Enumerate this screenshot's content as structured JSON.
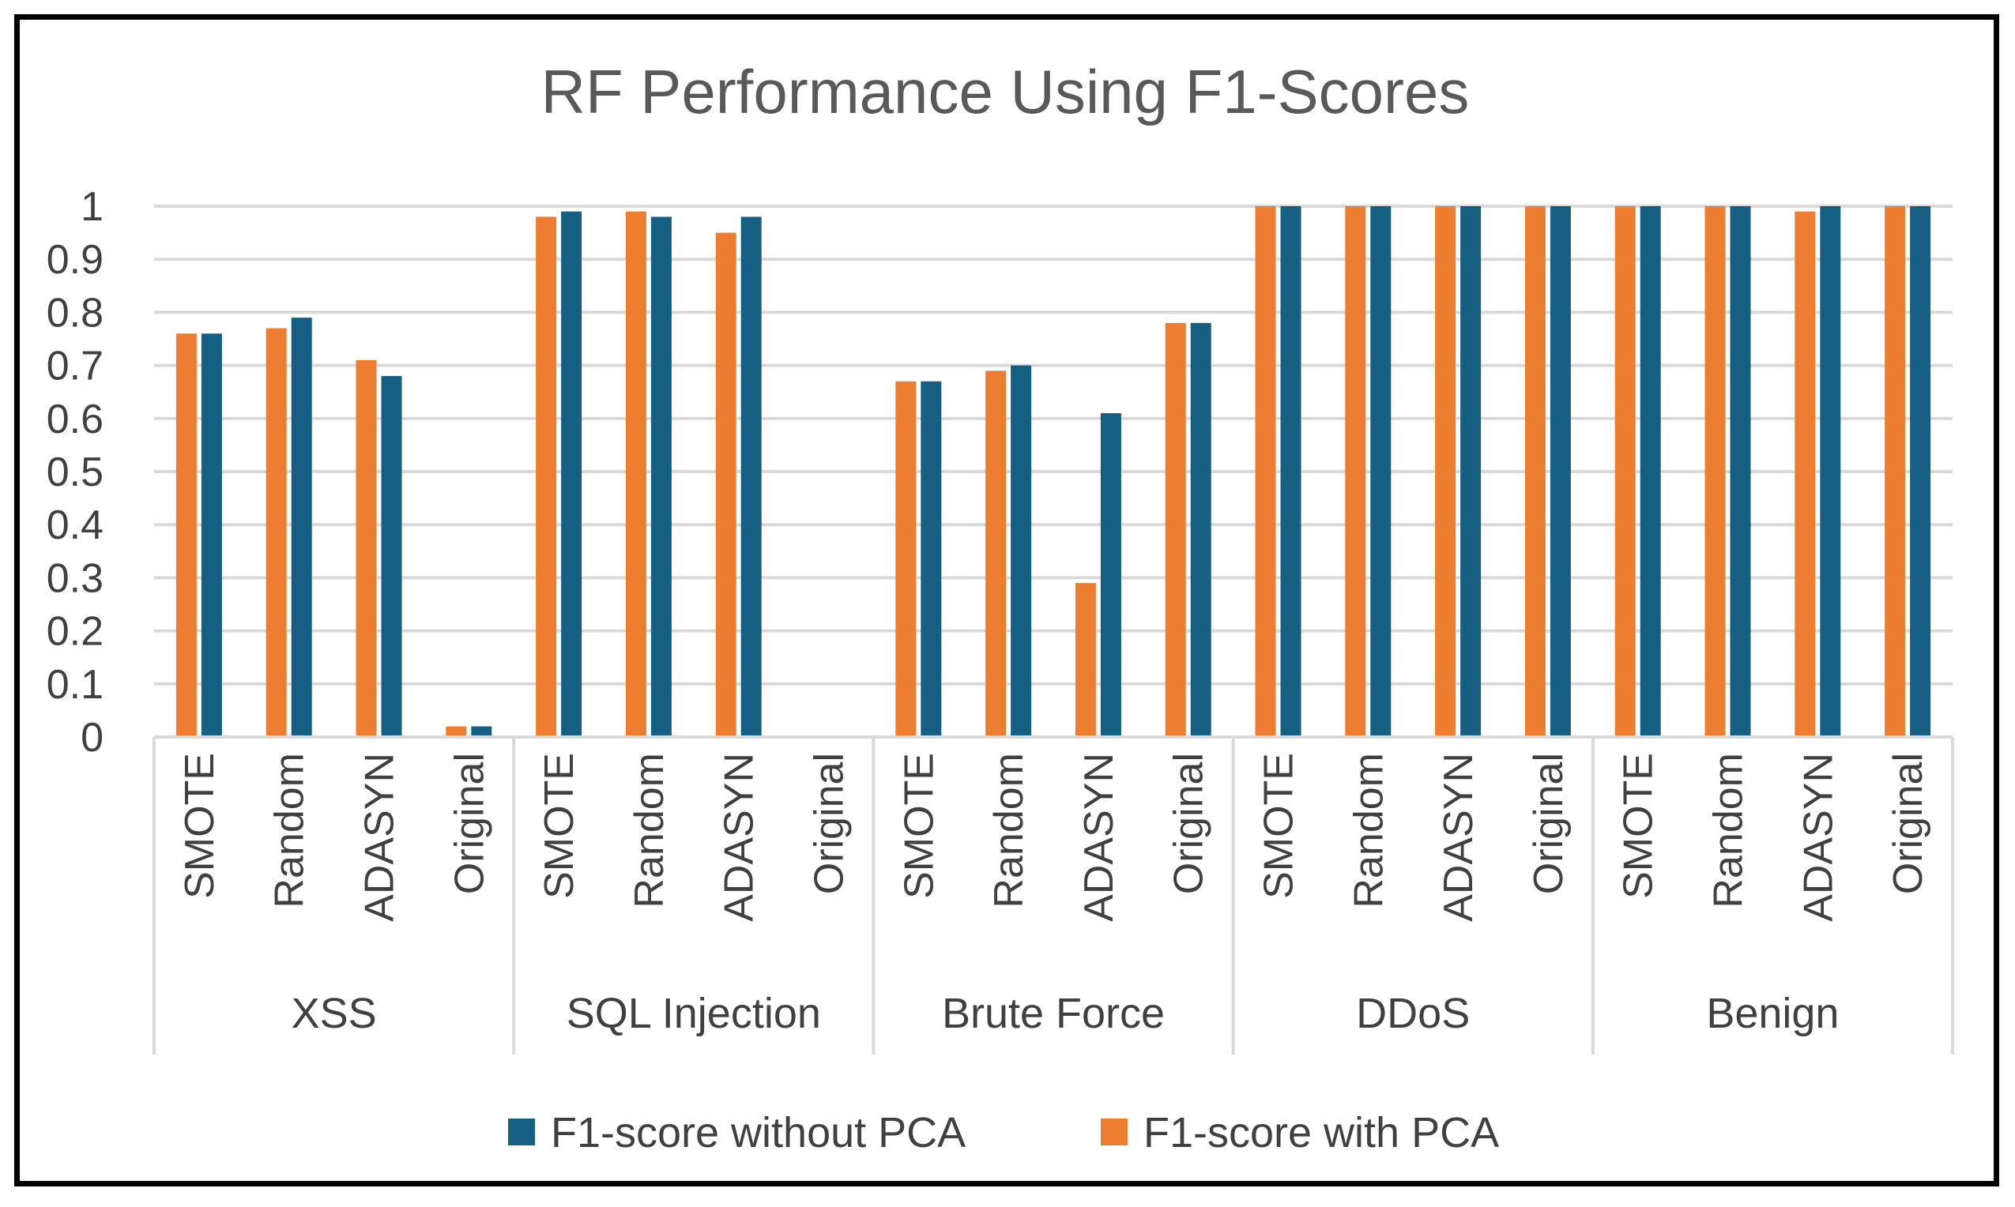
{
  "chart_data": {
    "type": "bar",
    "title": "RF Performance Using F1-Scores",
    "xlabel": "",
    "ylabel": "",
    "ylim": [
      0,
      1
    ],
    "yticks": [
      "0",
      "0.1",
      "0.2",
      "0.3",
      "0.4",
      "0.5",
      "0.6",
      "0.7",
      "0.8",
      "0.9",
      "1"
    ],
    "groups": [
      "XSS",
      "SQL Injection",
      "Brute Force",
      "DDoS",
      "Benign"
    ],
    "subcategories": [
      "SMOTE",
      "Random",
      "ADASYN",
      "Original"
    ],
    "series": [
      {
        "name": "F1-score with PCA",
        "color": "#ED7D31",
        "values": [
          0.76,
          0.77,
          0.71,
          0.02,
          0.98,
          0.99,
          0.95,
          0,
          0.67,
          0.69,
          0.29,
          0.78,
          1,
          1,
          1,
          1,
          1,
          1,
          0.99,
          1
        ]
      },
      {
        "name": "F1-score without PCA",
        "color": "#156082",
        "values": [
          0.76,
          0.79,
          0.68,
          0.02,
          0.99,
          0.98,
          0.98,
          0,
          0.67,
          0.7,
          0.61,
          0.78,
          1,
          1,
          1,
          1,
          1,
          1,
          1,
          1
        ]
      }
    ],
    "legend": {
      "position": "bottom",
      "order": [
        "F1-score without PCA",
        "F1-score with PCA"
      ]
    },
    "grid": true
  }
}
